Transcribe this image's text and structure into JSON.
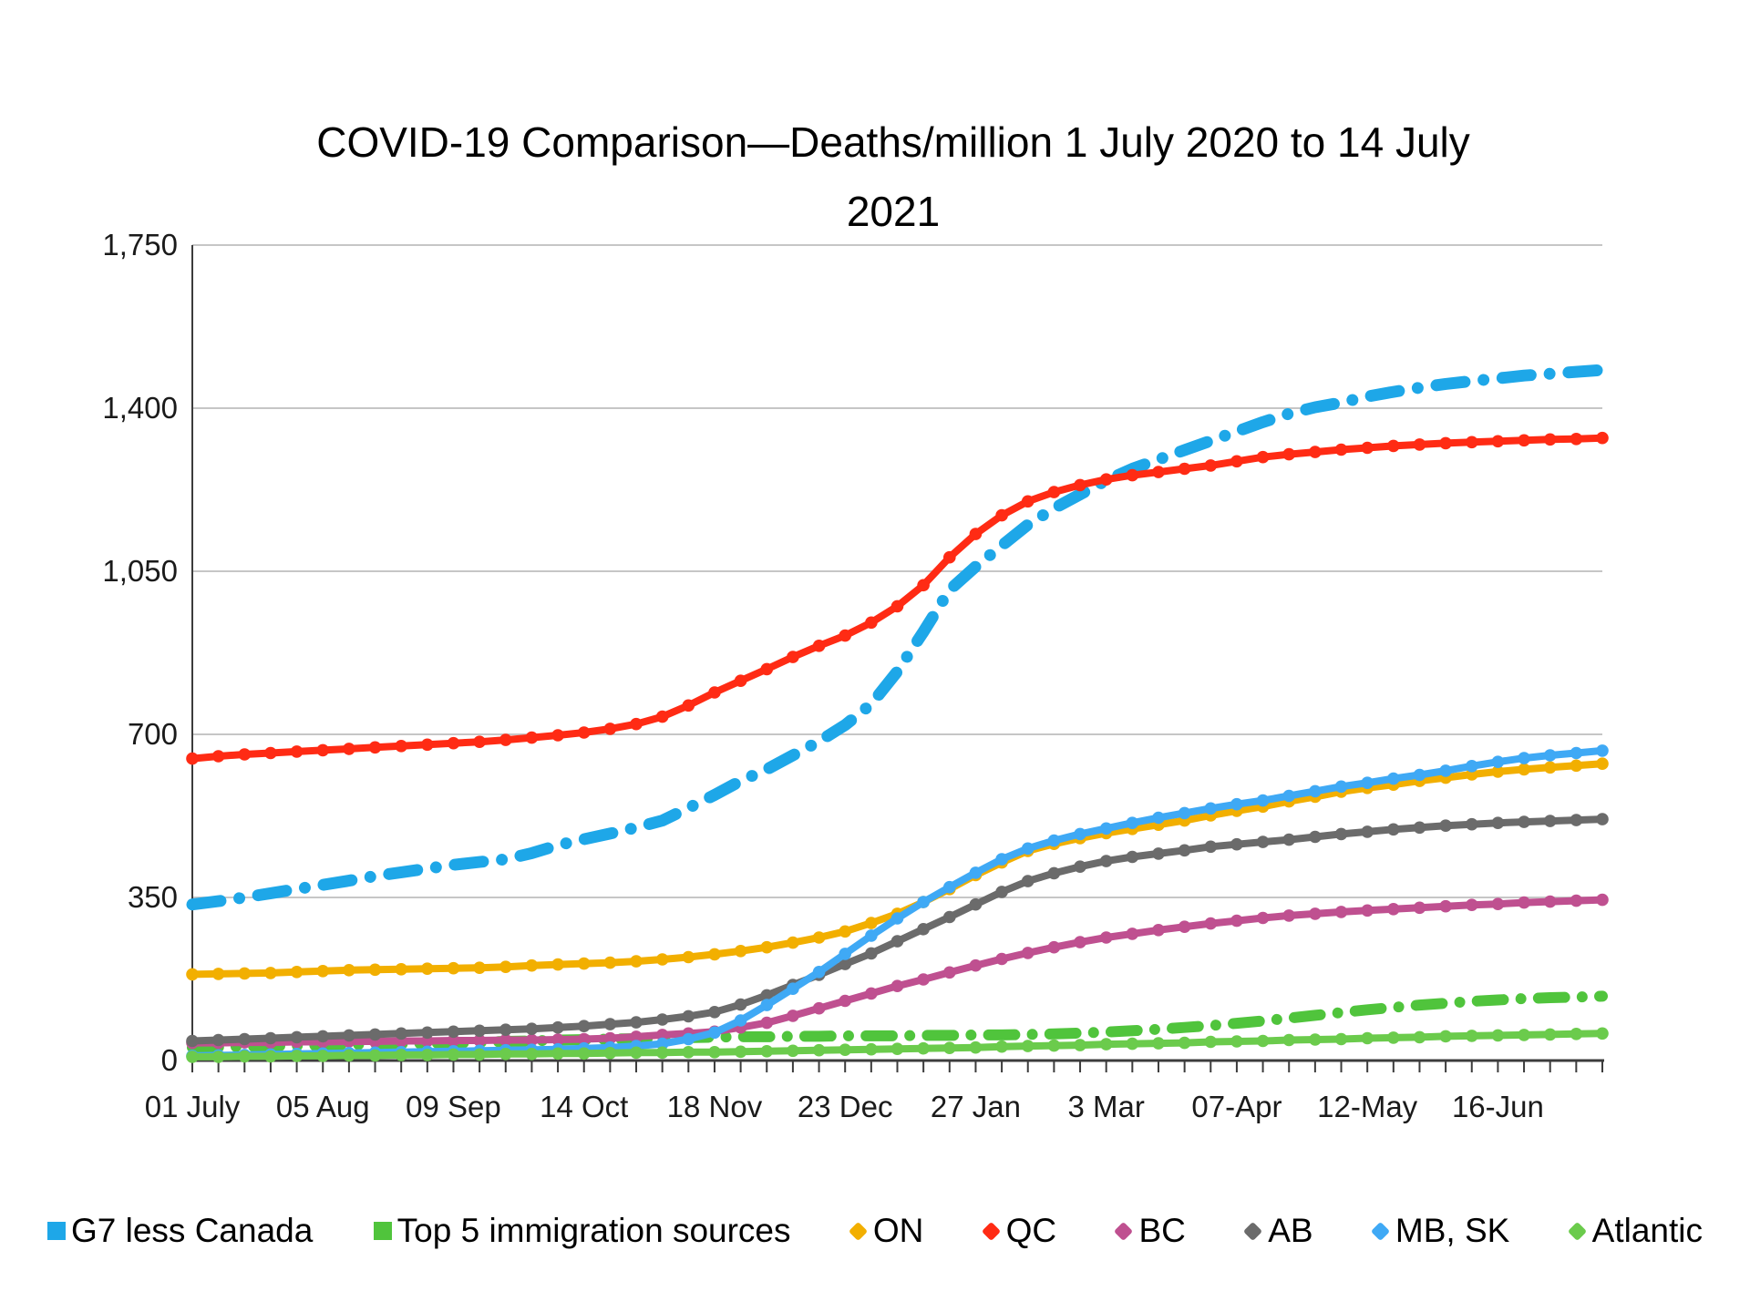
{
  "title": {
    "line1": "COVID-19 Comparison—Deaths/million 1 July 2020 to 14 July",
    "line2": "2021"
  },
  "chart_data": {
    "type": "line",
    "title": "COVID-19 Comparison—Deaths/million 1 July 2020 to 14 July 2021",
    "xlabel": "",
    "ylabel": "",
    "x_unit": "weeks from 01 July 2020, weekly points",
    "ylim": [
      0,
      1750
    ],
    "y_ticks": [
      0,
      350,
      700,
      1050,
      1400,
      1750
    ],
    "y_tick_labels": [
      "0",
      "350",
      "700",
      "1,050",
      "1,400",
      "1,750"
    ],
    "x_tick_weeks": [
      0,
      5,
      10,
      15,
      20,
      25,
      30,
      35,
      40,
      45,
      50
    ],
    "x_tick_labels": [
      "01 July",
      "05 Aug",
      "09 Sep",
      "14 Oct",
      "18 Nov",
      "23 Dec",
      "27 Jan",
      "3 Mar",
      "07-Apr",
      "12-May",
      "16-Jun"
    ],
    "grid": "horizontal",
    "legend_position": "bottom",
    "weeks_total": 54,
    "series": [
      {
        "name": "G7 less Canada",
        "color": "#1EA7E8",
        "style": "dash-dot",
        "width": 13,
        "marker": "square",
        "values": [
          335,
          342,
          350,
          359,
          368,
          377,
          386,
          396,
          404,
          412,
          420,
          426,
          432,
          445,
          462,
          475,
          487,
          500,
          515,
          542,
          570,
          600,
          625,
          655,
          685,
          720,
          765,
          835,
          920,
          1010,
          1060,
          1105,
          1150,
          1185,
          1215,
          1245,
          1270,
          1290,
          1310,
          1330,
          1350,
          1370,
          1388,
          1402,
          1412,
          1425,
          1435,
          1444,
          1452,
          1458,
          1464,
          1470,
          1474,
          1478,
          1482
        ]
      },
      {
        "name": "Top 5 immigration sources",
        "color": "#50C43C",
        "style": "dash-dot",
        "width": 12,
        "marker": "square",
        "values": [
          28,
          29,
          30,
          31,
          32,
          33,
          34,
          35,
          36,
          37,
          38,
          39,
          41,
          42,
          44,
          45,
          46,
          47,
          48,
          49,
          50,
          51,
          51,
          52,
          52,
          53,
          53,
          53,
          54,
          54,
          55,
          55,
          56,
          57,
          59,
          61,
          64,
          67,
          71,
          75,
          80,
          85,
          91,
          97,
          103,
          109,
          114,
          119,
          123,
          127,
          130,
          133,
          135,
          136,
          138
        ]
      },
      {
        "name": "ON",
        "color": "#F2AF00",
        "style": "solid",
        "width": 8,
        "marker": "diamond",
        "values": [
          185,
          186,
          187,
          188,
          190,
          192,
          194,
          195,
          196,
          197,
          198,
          199,
          201,
          204,
          206,
          208,
          210,
          213,
          217,
          222,
          228,
          235,
          243,
          253,
          264,
          277,
          295,
          315,
          340,
          368,
          398,
          425,
          450,
          465,
          477,
          488,
          497,
          506,
          515,
          526,
          536,
          545,
          556,
          566,
          577,
          585,
          592,
          600,
          607,
          614,
          620,
          625,
          629,
          633,
          637
        ]
      },
      {
        "name": "QC",
        "color": "#FF2B14",
        "style": "solid",
        "width": 8,
        "marker": "diamond",
        "values": [
          648,
          653,
          657,
          660,
          663,
          666,
          669,
          672,
          675,
          678,
          681,
          684,
          688,
          693,
          698,
          704,
          712,
          722,
          738,
          762,
          790,
          815,
          840,
          866,
          890,
          912,
          940,
          975,
          1020,
          1080,
          1130,
          1170,
          1200,
          1220,
          1235,
          1247,
          1256,
          1263,
          1270,
          1277,
          1286,
          1295,
          1301,
          1306,
          1311,
          1315,
          1319,
          1322,
          1325,
          1327,
          1329,
          1331,
          1333,
          1334,
          1336
        ]
      },
      {
        "name": "BC",
        "color": "#BF5090",
        "style": "solid",
        "width": 8,
        "marker": "diamond",
        "values": [
          38,
          38,
          39,
          39,
          40,
          40,
          41,
          41,
          42,
          42,
          43,
          43,
          44,
          44,
          45,
          46,
          48,
          51,
          55,
          58,
          62,
          71,
          81,
          96,
          112,
          128,
          144,
          160,
          174,
          189,
          204,
          218,
          231,
          243,
          254,
          264,
          272,
          280,
          287,
          294,
          300,
          306,
          311,
          315,
          319,
          322,
          325,
          328,
          331,
          334,
          336,
          339,
          341,
          343,
          345
        ]
      },
      {
        "name": "AB",
        "color": "#6B6B6B",
        "style": "solid",
        "width": 8,
        "marker": "diamond",
        "values": [
          42,
          44,
          46,
          48,
          50,
          52,
          54,
          56,
          58,
          60,
          62,
          64,
          66,
          68,
          71,
          74,
          78,
          82,
          88,
          95,
          104,
          120,
          140,
          162,
          184,
          207,
          230,
          256,
          282,
          308,
          335,
          362,
          385,
          402,
          416,
          428,
          437,
          444,
          451,
          459,
          464,
          469,
          474,
          480,
          486,
          491,
          496,
          500,
          504,
          507,
          510,
          512,
          514,
          516,
          518
        ]
      },
      {
        "name": "MB, SK",
        "color": "#3FA9F5",
        "style": "solid",
        "width": 8,
        "marker": "diamond",
        "values": [
          10,
          11,
          12,
          13,
          14,
          15,
          16,
          17,
          18,
          19,
          20,
          21,
          22,
          23,
          24,
          26,
          28,
          31,
          36,
          46,
          60,
          86,
          119,
          154,
          190,
          229,
          268,
          305,
          340,
          372,
          403,
          432,
          455,
          472,
          486,
          498,
          510,
          521,
          531,
          541,
          550,
          558,
          568,
          578,
          588,
          596,
          605,
          613,
          622,
          632,
          641,
          649,
          655,
          660,
          665
        ]
      },
      {
        "name": "Atlantic",
        "color": "#6BCB4C",
        "style": "solid",
        "width": 8,
        "marker": "diamond",
        "values": [
          8,
          8,
          9,
          9,
          10,
          10,
          11,
          11,
          12,
          12,
          13,
          13,
          14,
          14,
          15,
          15,
          16,
          17,
          17,
          18,
          18,
          19,
          20,
          21,
          22,
          23,
          24,
          25,
          26,
          27,
          28,
          30,
          31,
          32,
          33,
          35,
          36,
          37,
          38,
          40,
          41,
          42,
          44,
          45,
          46,
          48,
          49,
          50,
          52,
          53,
          54,
          55,
          56,
          57,
          58
        ]
      }
    ],
    "axis_color": "#3c3c3c",
    "grid_color": "#c6c6c6",
    "tick_label_color": "#1a1a1a"
  }
}
